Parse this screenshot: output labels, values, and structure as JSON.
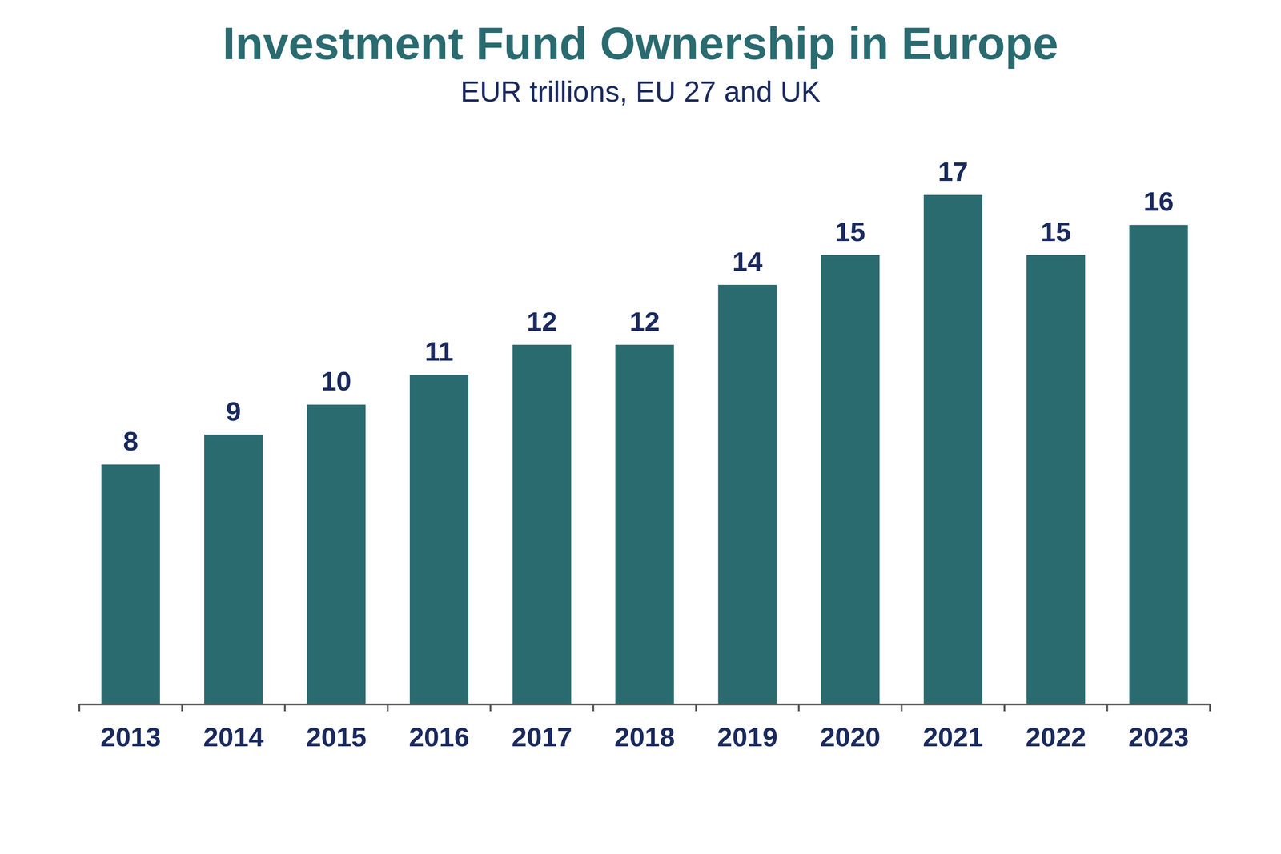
{
  "chart_data": {
    "type": "bar",
    "title": "Investment Fund Ownership in Europe",
    "subtitle": "EUR trillions, EU 27 and UK",
    "categories": [
      "2013",
      "2014",
      "2015",
      "2016",
      "2017",
      "2018",
      "2019",
      "2020",
      "2021",
      "2022",
      "2023"
    ],
    "values": [
      8,
      9,
      10,
      11,
      12,
      12,
      14,
      15,
      17,
      15,
      16
    ],
    "color": "#2a6b70",
    "ylim": [
      0,
      17
    ],
    "data_labels": true,
    "tick_labels": "x",
    "grid": false
  }
}
